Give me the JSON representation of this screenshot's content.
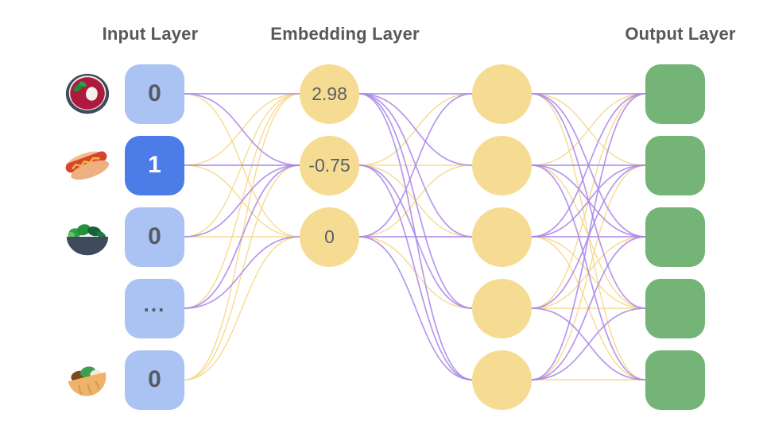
{
  "diagram": {
    "headers": {
      "input": "Input Layer",
      "embedding": "Embedding Layer",
      "output": "Output Layer"
    },
    "colors": {
      "header_color": "#58585a",
      "label_dark": "#555b63",
      "label_light": "#ffffff",
      "value_gray": "#5a5f66",
      "edge_purple": "#a886e9",
      "edge_yellow": "#f7d88b",
      "input_fill": "#abc3f2",
      "input_active_fill": "#4b7ce8",
      "node_yellow": "#f6db93",
      "output_fill": "#74b477"
    },
    "layers": {
      "input": {
        "shape": "box",
        "fill": "#abc3f2",
        "active_fill": "#4b7ce8",
        "nodes": [
          {
            "label": "0",
            "row": 0,
            "icon": "soup-bowl"
          },
          {
            "label": "1",
            "row": 1,
            "icon": "hotdog",
            "active": true
          },
          {
            "label": "0",
            "row": 2,
            "icon": "salad"
          },
          {
            "label": "...",
            "row": 3,
            "dots": true
          },
          {
            "label": "0",
            "row": 4,
            "icon": "pita"
          }
        ]
      },
      "embedding": {
        "shape": "circle",
        "fill": "#f6db93",
        "nodes": [
          {
            "label": "2.98",
            "row": 0
          },
          {
            "label": "-0.75",
            "row": 1
          },
          {
            "label": "0",
            "row": 2
          }
        ]
      },
      "hidden": {
        "shape": "circle",
        "fill": "#f6db93",
        "nodes": [
          {
            "label": "",
            "row": 0
          },
          {
            "label": "",
            "row": 1
          },
          {
            "label": "",
            "row": 2
          },
          {
            "label": "",
            "row": 3
          },
          {
            "label": "",
            "row": 4
          }
        ]
      },
      "output": {
        "shape": "box",
        "fill": "#74b477",
        "nodes": [
          {
            "label": "",
            "row": 0
          },
          {
            "label": "",
            "row": 1
          },
          {
            "label": "",
            "row": 2
          },
          {
            "label": "",
            "row": 3
          },
          {
            "label": "",
            "row": 4
          }
        ]
      }
    },
    "edges": {
      "input_embedding": [
        [
          "p",
          "p",
          "y"
        ],
        [
          "y",
          "p",
          "y"
        ],
        [
          "y",
          "p",
          "y"
        ],
        [
          "y",
          "p",
          "p"
        ],
        [
          "y",
          "y",
          "y"
        ]
      ],
      "embedding_hidden": [
        [
          "p",
          "p",
          "p",
          "p",
          "p"
        ],
        [
          "y",
          "y",
          "y",
          "p",
          "p"
        ],
        [
          "p",
          "y",
          "p",
          "y",
          "p"
        ]
      ],
      "hidden_output": [
        [
          "p",
          "y",
          "p",
          "p",
          "y"
        ],
        [
          "y",
          "p",
          "p",
          "y",
          "p"
        ],
        [
          "p",
          "p",
          "p",
          "y",
          "y"
        ],
        [
          "y",
          "p",
          "y",
          "y",
          "p"
        ],
        [
          "p",
          "y",
          "p",
          "p",
          "y"
        ]
      ]
    }
  }
}
